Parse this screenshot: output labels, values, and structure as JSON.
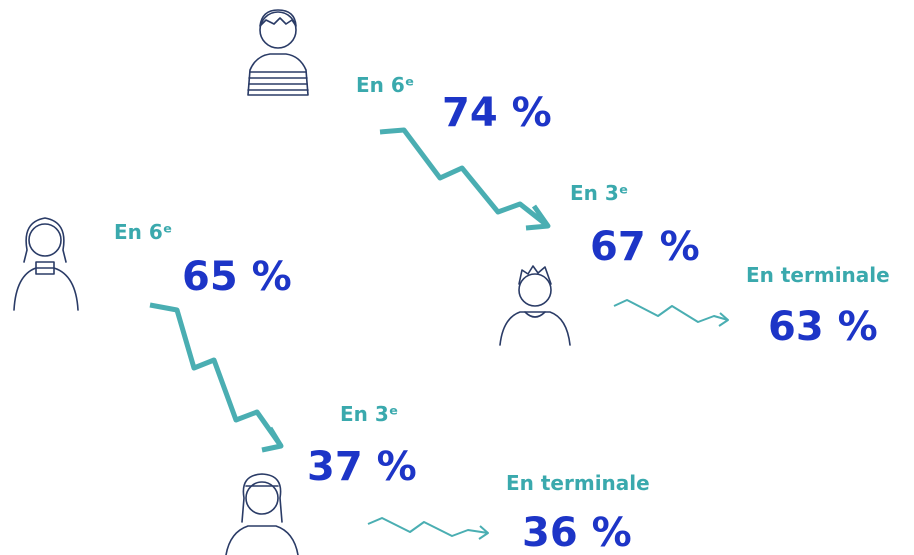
{
  "groups": [
    {
      "stages": [
        {
          "label": "En 6ᵉ",
          "value": "74 %"
        },
        {
          "label": "En 3ᵉ",
          "value": "67 %"
        },
        {
          "label": "En terminale",
          "value": "63 %"
        }
      ]
    },
    {
      "stages": [
        {
          "label": "En 6ᵉ",
          "value": "65 %"
        },
        {
          "label": "En 3ᵉ",
          "value": "37 %"
        },
        {
          "label": "En terminale",
          "value": "36 %"
        }
      ]
    }
  ]
}
